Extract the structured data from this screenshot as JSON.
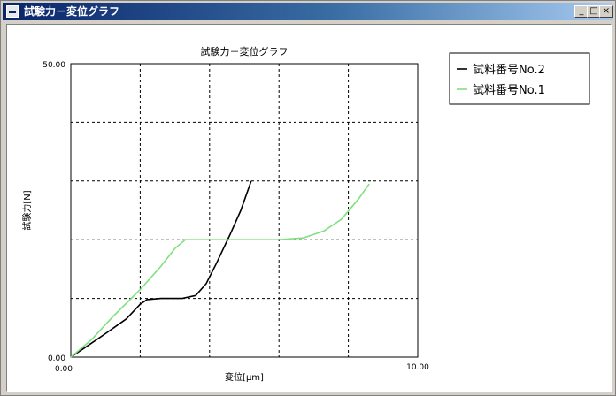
{
  "window": {
    "title": "試験力－変位グラフ",
    "buttons": {
      "minimize": "_",
      "maximize": "□",
      "close": "×"
    }
  },
  "colors": {
    "series1": "#000000",
    "series2": "#7fe07f",
    "grid": "#000000"
  },
  "chart_data": {
    "type": "line",
    "title": "試験力－変位グラフ",
    "xlabel": "変位[μm]",
    "ylabel": "試験力[N]",
    "xlim": [
      0,
      10
    ],
    "ylim": [
      0,
      50
    ],
    "grid": true,
    "legend_position": "top-right",
    "x_tick_labels": [
      "0.00",
      "10.00"
    ],
    "y_tick_labels": [
      "0.00",
      "50.00"
    ],
    "series": [
      {
        "name": "試料番号No.2",
        "color": "#000000",
        "points": [
          [
            0,
            0
          ],
          [
            0.4,
            1.6
          ],
          [
            1.0,
            4.0
          ],
          [
            1.6,
            6.5
          ],
          [
            2.0,
            9.0
          ],
          [
            2.2,
            9.8
          ],
          [
            2.6,
            10.0
          ],
          [
            3.2,
            10.0
          ],
          [
            3.6,
            10.5
          ],
          [
            3.9,
            12.5
          ],
          [
            4.2,
            16.0
          ],
          [
            4.6,
            21.0
          ],
          [
            4.9,
            25.0
          ],
          [
            5.2,
            30.0
          ]
        ]
      },
      {
        "name": "試料番号No.1",
        "color": "#7fe07f",
        "points": [
          [
            0,
            0
          ],
          [
            0.6,
            3.0
          ],
          [
            1.2,
            6.8
          ],
          [
            2.0,
            11.5
          ],
          [
            2.6,
            15.5
          ],
          [
            3.0,
            18.5
          ],
          [
            3.3,
            20.0
          ],
          [
            4.0,
            20.0
          ],
          [
            5.0,
            20.0
          ],
          [
            6.0,
            20.0
          ],
          [
            6.7,
            20.3
          ],
          [
            7.3,
            21.5
          ],
          [
            7.8,
            23.5
          ],
          [
            8.3,
            27.0
          ],
          [
            8.6,
            29.5
          ]
        ]
      }
    ]
  }
}
